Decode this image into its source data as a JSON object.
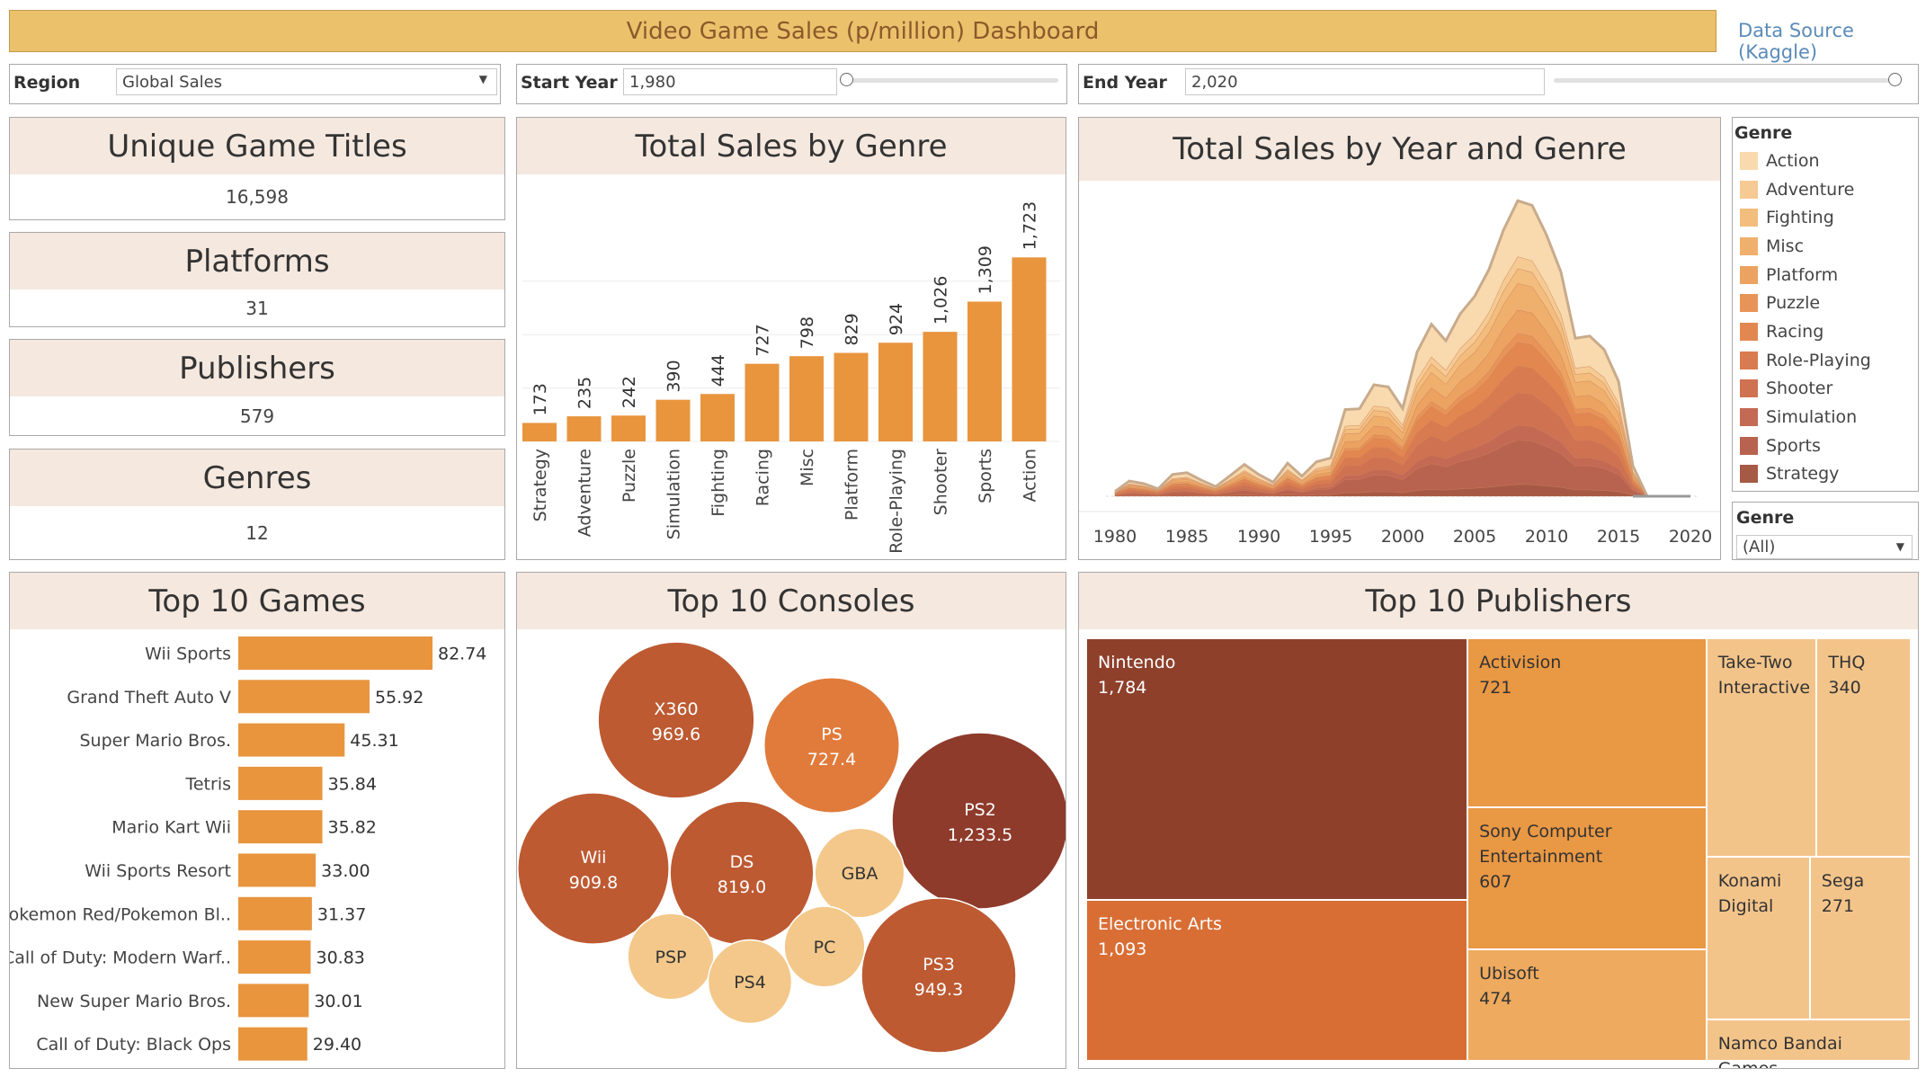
{
  "header": {
    "title": "Video Game Sales (p/million) Dashboard",
    "source_link": "Data Source (Kaggle)"
  },
  "filters": {
    "region_label": "Region",
    "region_value": "Global Sales",
    "start_label": "Start Year",
    "start_value": "1,980",
    "end_label": "End Year",
    "end_value": "2,020",
    "genre_label": "Genre",
    "genre_value": "(All)"
  },
  "kpis": [
    {
      "title": "Unique Game Titles",
      "value": "16,598"
    },
    {
      "title": "Platforms",
      "value": "31"
    },
    {
      "title": "Publishers",
      "value": "579"
    },
    {
      "title": "Genres",
      "value": "12"
    }
  ],
  "colors": {
    "bar": "#e8953e",
    "title_bar": "#ecc16c",
    "panel_header": "#f5e8df",
    "genre": [
      "#f9d9ae",
      "#f6ca93",
      "#f3bd7e",
      "#f0b06d",
      "#eca261",
      "#e89458",
      "#e38751",
      "#d97b50",
      "#cf7252",
      "#c46954",
      "#b8634f",
      "#a65a45"
    ]
  },
  "genre_legend": {
    "title": "Genre",
    "items": [
      "Action",
      "Adventure",
      "Fighting",
      "Misc",
      "Platform",
      "Puzzle",
      "Racing",
      "Role-Playing",
      "Shooter",
      "Simulation",
      "Sports",
      "Strategy"
    ]
  },
  "panels": {
    "genre_sales_title": "Total Sales by Genre",
    "year_genre_title": "Total Sales by Year and Genre",
    "top_games_title": "Top 10 Games",
    "top_consoles_title": "Top 10 Consoles",
    "top_publishers_title": "Top 10 Publishers"
  },
  "chart_data": [
    {
      "type": "bar",
      "title": "Total Sales by Genre",
      "categories": [
        "Strategy",
        "Adventure",
        "Puzzle",
        "Simulation",
        "Fighting",
        "Racing",
        "Misc",
        "Platform",
        "Role-Playing",
        "Shooter",
        "Sports",
        "Action"
      ],
      "values": [
        173,
        235,
        242,
        390,
        444,
        727,
        798,
        829,
        924,
        1026,
        1309,
        1723
      ],
      "labels": [
        "173",
        "235",
        "242",
        "390",
        "444",
        "727",
        "798",
        "829",
        "924",
        "1,026",
        "1,309",
        "1,723"
      ],
      "ylim": [
        0,
        2000
      ]
    },
    {
      "type": "area",
      "title": "Total Sales by Year and Genre",
      "x_ticks": [
        1980,
        1985,
        1990,
        1995,
        2000,
        2005,
        2010,
        2015,
        2020
      ],
      "x": [
        1980,
        1981,
        1982,
        1983,
        1984,
        1985,
        1986,
        1987,
        1988,
        1989,
        1990,
        1991,
        1992,
        1993,
        1994,
        1995,
        1996,
        1997,
        1998,
        1999,
        2000,
        2001,
        2002,
        2003,
        2004,
        2005,
        2006,
        2007,
        2008,
        2009,
        2010,
        2011,
        2012,
        2013,
        2014,
        2015,
        2016,
        2017,
        2018,
        2019,
        2020
      ],
      "totals": [
        11,
        35,
        29,
        17,
        50,
        54,
        37,
        22,
        47,
        73,
        50,
        32,
        76,
        46,
        79,
        88,
        199,
        201,
        256,
        251,
        202,
        331,
        395,
        357,
        419,
        459,
        521,
        611,
        679,
        668,
        600,
        515,
        363,
        368,
        337,
        264,
        70,
        0,
        0,
        0,
        0
      ],
      "series_share": [
        0.19,
        0.04,
        0.05,
        0.09,
        0.08,
        0.03,
        0.08,
        0.09,
        0.11,
        0.05,
        0.15,
        0.04
      ],
      "xlim": [
        1980,
        2020
      ],
      "ylim": [
        0,
        700
      ]
    },
    {
      "type": "bar",
      "orientation": "horizontal",
      "title": "Top 10 Games",
      "categories": [
        "Wii Sports",
        "Grand Theft Auto V",
        "Super Mario Bros.",
        "Tetris",
        "Mario Kart Wii",
        "Wii Sports Resort",
        "Pokemon Red/Pokemon Bl..",
        "Call of Duty: Modern Warf..",
        "New Super Mario Bros.",
        "Call of Duty: Black Ops"
      ],
      "values": [
        82.74,
        55.92,
        45.31,
        35.84,
        35.82,
        33.0,
        31.37,
        30.83,
        30.01,
        29.4
      ],
      "labels": [
        "82.74",
        "55.92",
        "45.31",
        "35.84",
        "35.82",
        "33.00",
        "31.37",
        "30.83",
        "30.01",
        "29.40"
      ]
    },
    {
      "type": "bubble",
      "title": "Top 10 Consoles",
      "items": [
        {
          "name": "PS2",
          "value": 1233.5,
          "label": "1,233.5"
        },
        {
          "name": "X360",
          "value": 969.6,
          "label": "969.6"
        },
        {
          "name": "PS3",
          "value": 949.3,
          "label": "949.3"
        },
        {
          "name": "Wii",
          "value": 909.8,
          "label": "909.8"
        },
        {
          "name": "DS",
          "value": 819.0,
          "label": "819.0"
        },
        {
          "name": "PS",
          "value": 727.4,
          "label": "727.4"
        },
        {
          "name": "GBA",
          "value": 318,
          "label": ""
        },
        {
          "name": "PSP",
          "value": 294,
          "label": ""
        },
        {
          "name": "PS4",
          "value": 278,
          "label": ""
        },
        {
          "name": "PC",
          "value": 258,
          "label": ""
        }
      ]
    },
    {
      "type": "treemap",
      "title": "Top 10 Publishers",
      "items": [
        {
          "name": "Nintendo",
          "value": 1784,
          "label": "1,784"
        },
        {
          "name": "Electronic Arts",
          "value": 1093,
          "label": "1,093"
        },
        {
          "name": "Activision",
          "value": 721,
          "label": "721"
        },
        {
          "name": "Sony Computer Entertainment",
          "value": 607,
          "label": "607"
        },
        {
          "name": "Ubisoft",
          "value": 474,
          "label": "474"
        },
        {
          "name": "Take-Two Interactive",
          "value": 399,
          "label": ""
        },
        {
          "name": "THQ",
          "value": 340,
          "label": "340"
        },
        {
          "name": "Konami Digital",
          "value": 278,
          "label": ""
        },
        {
          "name": "Sega",
          "value": 271,
          "label": "271"
        },
        {
          "name": "Namco Bandai Games",
          "value": 254,
          "label": ""
        }
      ]
    }
  ]
}
